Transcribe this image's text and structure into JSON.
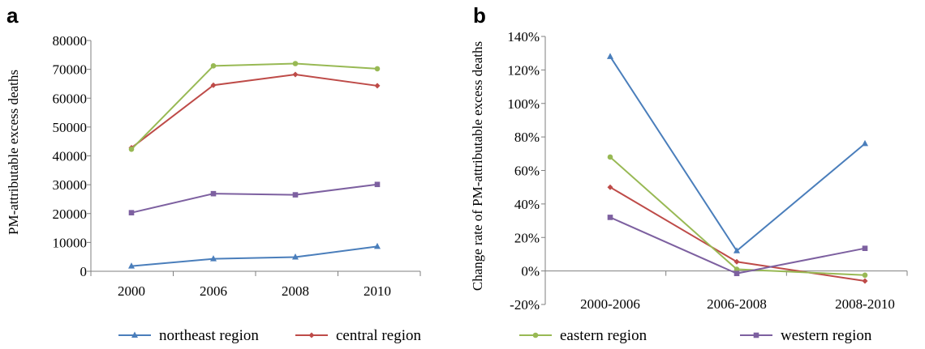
{
  "chart_data": [
    {
      "panel": "a",
      "type": "line",
      "categories": [
        "2000",
        "2006",
        "2008",
        "2010"
      ],
      "ylabel": "PM-attributable excess deaths",
      "xlabel": "",
      "ylim": [
        0,
        80000
      ],
      "yticks": [
        "0",
        "10000",
        "20000",
        "30000",
        "40000",
        "50000",
        "60000",
        "70000",
        "80000"
      ],
      "ytick_values": [
        0,
        10000,
        20000,
        30000,
        40000,
        50000,
        60000,
        70000,
        80000
      ],
      "grid": false,
      "series": [
        {
          "name": "northeast region",
          "color": "#4a7ebb",
          "marker": "triangle",
          "values": [
            1800,
            4300,
            4900,
            8600
          ]
        },
        {
          "name": "central region",
          "color": "#be4b48",
          "marker": "diamond",
          "values": [
            42800,
            64500,
            68200,
            64300
          ]
        },
        {
          "name": "eastern region",
          "color": "#98b954",
          "marker": "circle",
          "values": [
            42300,
            71200,
            72000,
            70200
          ]
        },
        {
          "name": "western region",
          "color": "#7d60a0",
          "marker": "square",
          "values": [
            20300,
            26900,
            26500,
            30100
          ]
        }
      ]
    },
    {
      "panel": "b",
      "type": "line",
      "categories": [
        "2000-2006",
        "2006-2008",
        "2008-2010"
      ],
      "ylabel": "Change rate of PM-attributable excess deaths",
      "xlabel": "",
      "ylim": [
        -20,
        140
      ],
      "yticks": [
        "-20%",
        "0%",
        "20%",
        "40%",
        "60%",
        "80%",
        "100%",
        "120%",
        "140%"
      ],
      "ytick_values": [
        -20,
        0,
        20,
        40,
        60,
        80,
        100,
        120,
        140
      ],
      "grid": false,
      "series": [
        {
          "name": "northeast region",
          "color": "#4a7ebb",
          "marker": "triangle",
          "values": [
            128,
            12,
            76
          ]
        },
        {
          "name": "central region",
          "color": "#be4b48",
          "marker": "diamond",
          "values": [
            50,
            5.5,
            -6
          ]
        },
        {
          "name": "eastern region",
          "color": "#98b954",
          "marker": "circle",
          "values": [
            68,
            1,
            -2.5
          ]
        },
        {
          "name": "western region",
          "color": "#7d60a0",
          "marker": "square",
          "values": [
            32,
            -1.5,
            13.5
          ]
        }
      ]
    }
  ],
  "legend": {
    "placement": "bottom",
    "items": [
      {
        "label": "northeast region",
        "color": "#4a7ebb",
        "marker": "triangle"
      },
      {
        "label": "central region",
        "color": "#be4b48",
        "marker": "diamond"
      },
      {
        "label": "eastern region",
        "color": "#98b954",
        "marker": "circle"
      },
      {
        "label": "western region",
        "color": "#7d60a0",
        "marker": "square"
      }
    ]
  }
}
